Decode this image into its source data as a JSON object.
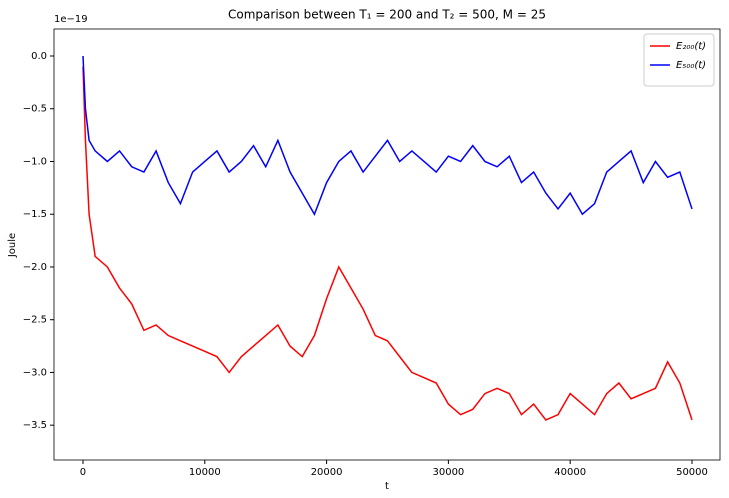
{
  "chart_data": {
    "type": "line",
    "title": "Comparison between T₁ = 200 and T₂ = 500, M = 25",
    "xlabel": "t",
    "ylabel": "Joule",
    "offset_text": "1e−19",
    "x": [
      0,
      200,
      500,
      1000,
      2000,
      3000,
      4000,
      5000,
      6000,
      7000,
      8000,
      9000,
      10000,
      11000,
      12000,
      13000,
      14000,
      15000,
      16000,
      17000,
      18000,
      19000,
      20000,
      21000,
      22000,
      23000,
      24000,
      25000,
      26000,
      27000,
      28000,
      29000,
      30000,
      31000,
      32000,
      33000,
      34000,
      35000,
      36000,
      37000,
      38000,
      39000,
      40000,
      41000,
      42000,
      43000,
      44000,
      45000,
      46000,
      47000,
      48000,
      49000,
      50000
    ],
    "series": [
      {
        "name": "E₂₀₀(t)",
        "color": "#ff0000",
        "values": [
          -0.1,
          -0.8,
          -1.5,
          -1.9,
          -2.0,
          -2.2,
          -2.35,
          -2.6,
          -2.55,
          -2.65,
          -2.7,
          -2.75,
          -2.8,
          -2.85,
          -3.0,
          -2.85,
          -2.75,
          -2.65,
          -2.55,
          -2.75,
          -2.85,
          -2.65,
          -2.3,
          -2.0,
          -2.2,
          -2.4,
          -2.65,
          -2.7,
          -2.85,
          -3.0,
          -3.05,
          -3.1,
          -3.3,
          -3.4,
          -3.35,
          -3.2,
          -3.15,
          -3.2,
          -3.4,
          -3.3,
          -3.45,
          -3.4,
          -3.2,
          -3.3,
          -3.4,
          -3.2,
          -3.1,
          -3.25,
          -3.2,
          -3.15,
          -2.9,
          -3.1,
          -3.45
        ]
      },
      {
        "name": "E₅₀₀(t)",
        "color": "#0000ff",
        "values": [
          0.0,
          -0.5,
          -0.8,
          -0.9,
          -1.0,
          -0.9,
          -1.05,
          -1.1,
          -0.9,
          -1.2,
          -1.4,
          -1.1,
          -1.0,
          -0.9,
          -1.1,
          -1.0,
          -0.85,
          -1.05,
          -0.8,
          -1.1,
          -1.3,
          -1.5,
          -1.2,
          -1.0,
          -0.9,
          -1.1,
          -0.95,
          -0.8,
          -1.0,
          -0.9,
          -1.0,
          -1.1,
          -0.95,
          -1.0,
          -0.85,
          -1.0,
          -1.05,
          -0.95,
          -1.2,
          -1.1,
          -1.3,
          -1.45,
          -1.3,
          -1.5,
          -1.4,
          -1.1,
          -1.0,
          -0.9,
          -1.2,
          -1.0,
          -1.15,
          -1.1,
          -1.45
        ]
      }
    ],
    "xlim": [
      -2381,
      52300
    ],
    "ylim": [
      -3.83,
      0.256
    ],
    "xticks": [
      0,
      10000,
      20000,
      30000,
      40000,
      50000
    ],
    "yticks": [
      {
        "value": 0,
        "label": "0.0"
      },
      {
        "value": -0.5,
        "label": "−0.5"
      },
      {
        "value": -1,
        "label": "−1.0"
      },
      {
        "value": -1.5,
        "label": "−1.5"
      },
      {
        "value": -2,
        "label": "−2.0"
      },
      {
        "value": -2.5,
        "label": "−2.5"
      },
      {
        "value": -3,
        "label": "−3.0"
      },
      {
        "value": -3.5,
        "label": "−3.5"
      }
    ],
    "legend": "upper right",
    "grid": false
  }
}
